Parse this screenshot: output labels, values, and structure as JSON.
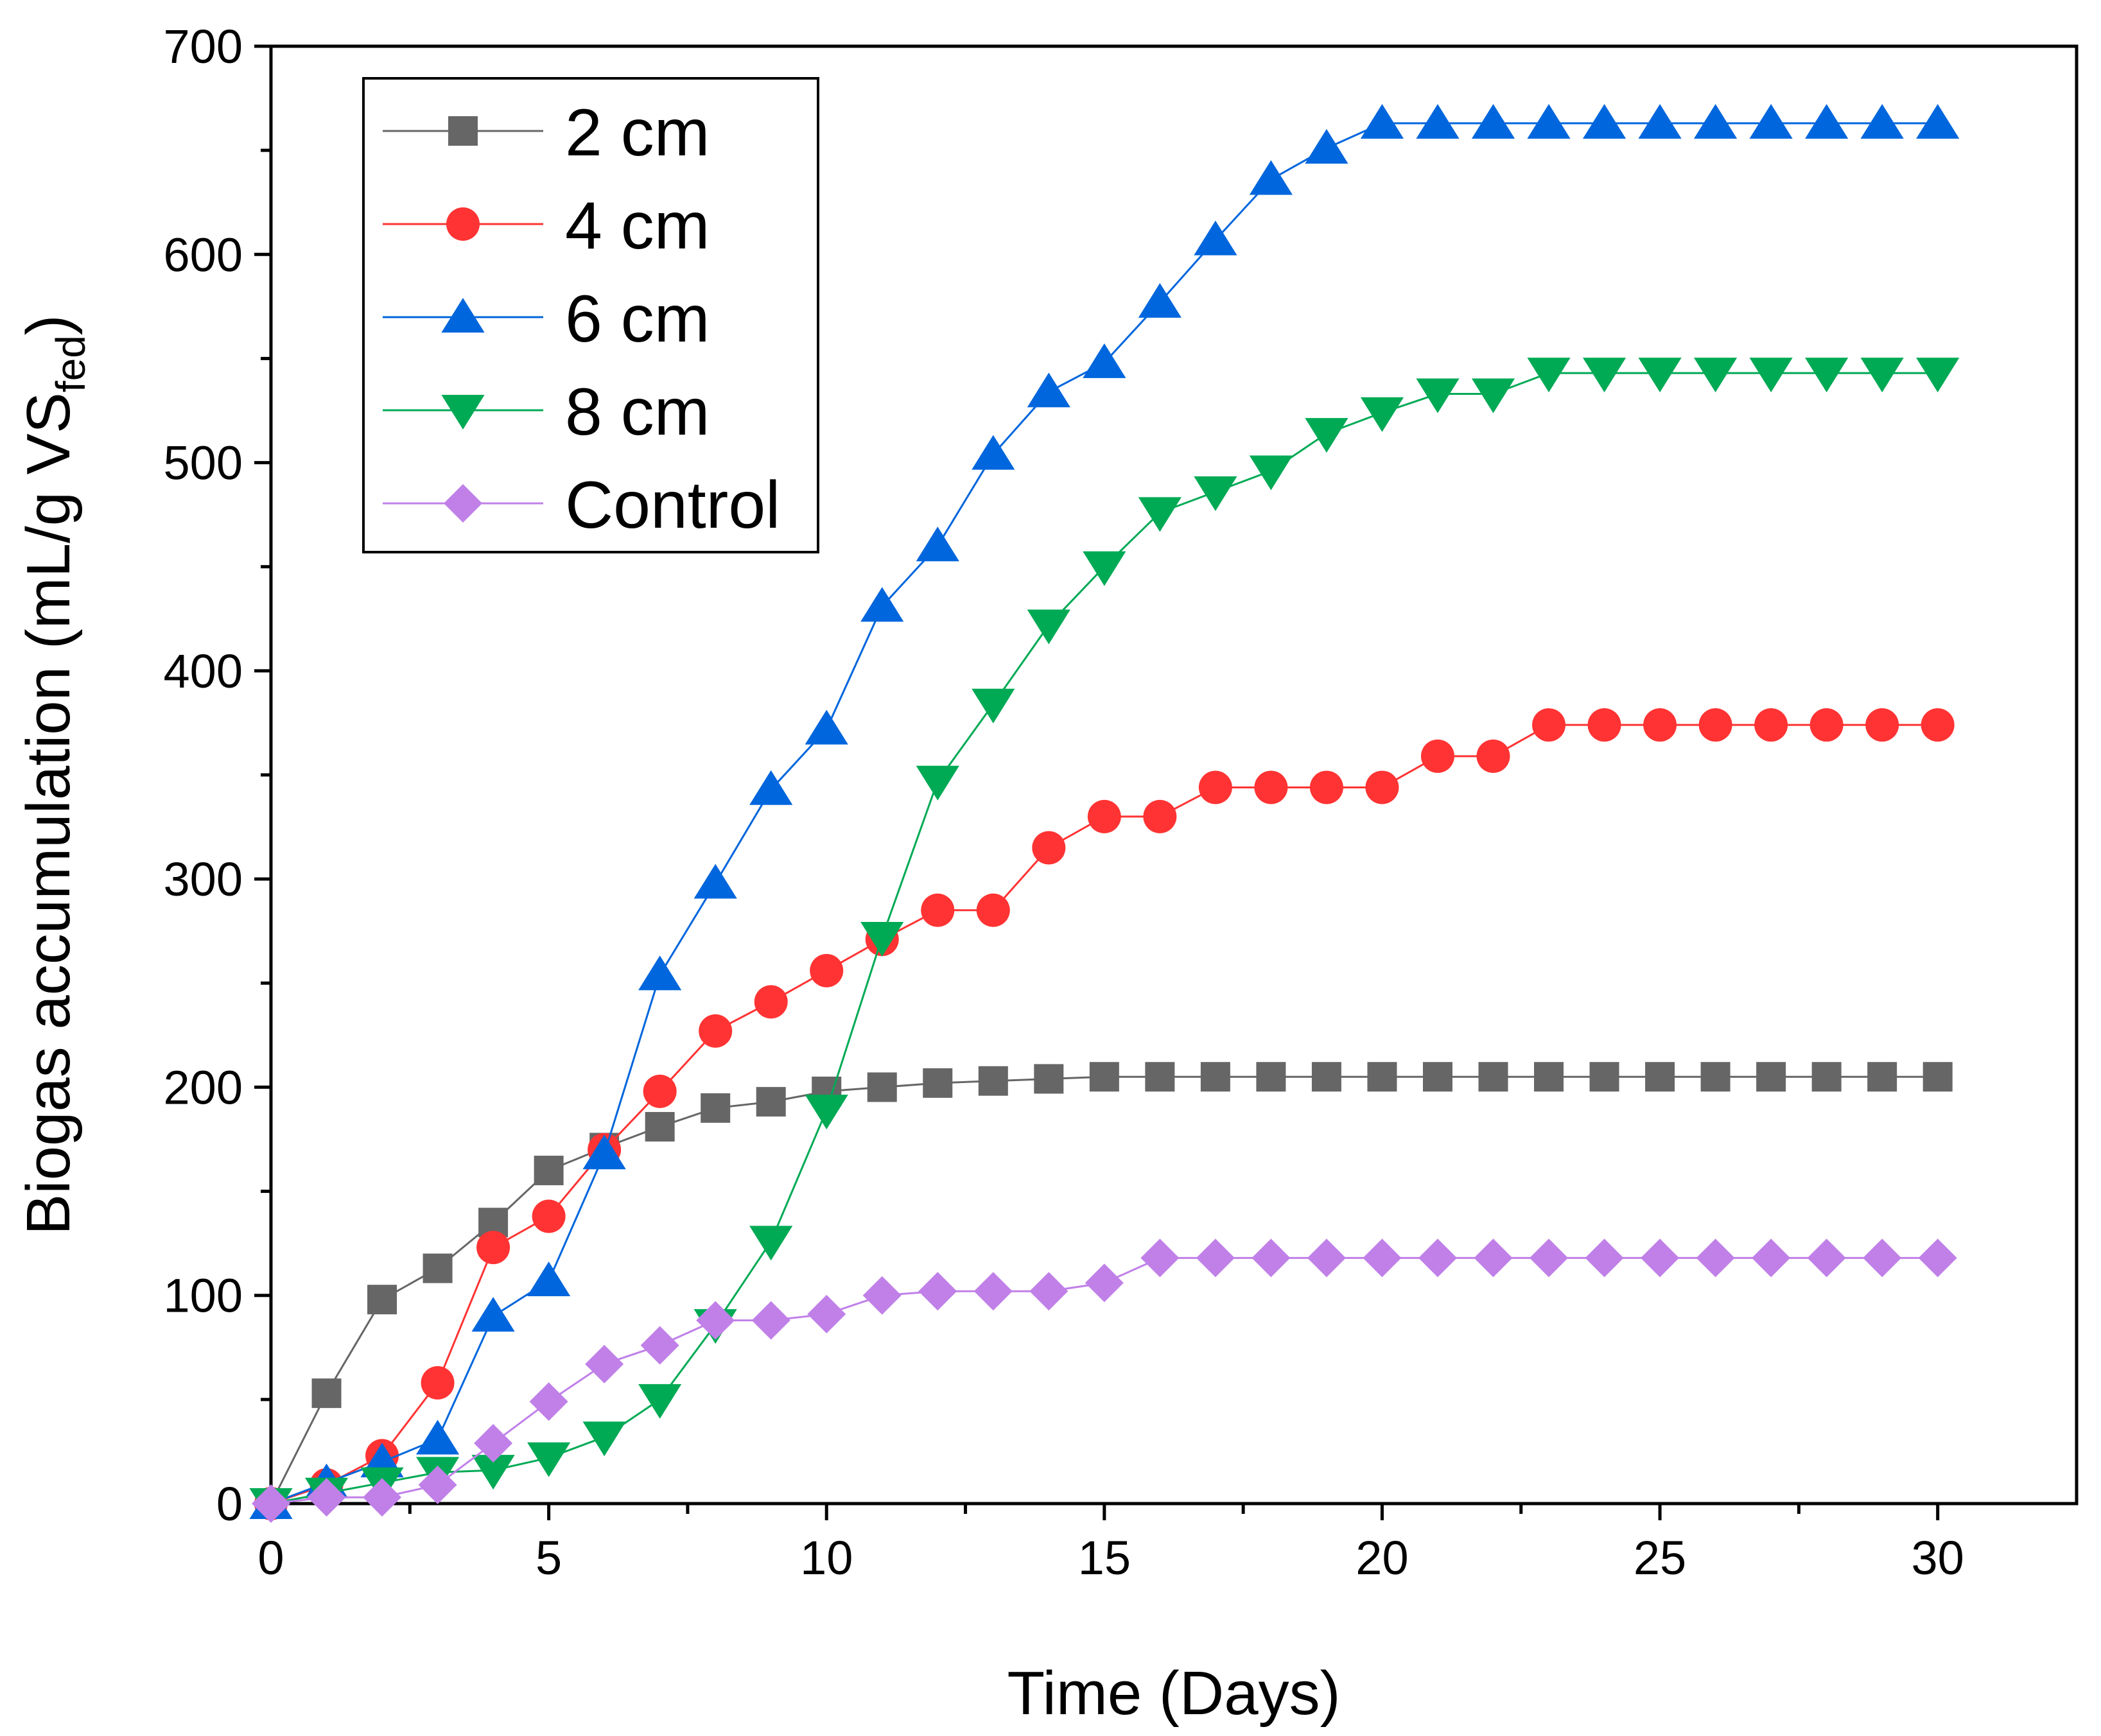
{
  "chart_data": {
    "type": "line",
    "title": "",
    "xlabel": "Time (Days)",
    "ylabel": {
      "main": "Biogas accumulation (mL/g VS",
      "subscript": "fed",
      "close": ")"
    },
    "xlim": [
      0,
      32.5
    ],
    "ylim": [
      0,
      700
    ],
    "xticks": [
      0,
      5,
      10,
      15,
      20,
      25,
      30
    ],
    "yticks": [
      0,
      100,
      200,
      300,
      400,
      500,
      600,
      700
    ],
    "x": [
      0,
      1,
      2,
      3,
      4,
      5,
      6,
      7,
      8,
      9,
      10,
      11,
      12,
      13,
      14,
      15,
      16,
      17,
      18,
      19,
      20,
      21,
      22,
      23,
      24,
      25,
      26,
      27,
      28,
      29,
      30
    ],
    "legend_position": "top-left",
    "series": [
      {
        "name": "2 cm",
        "color": "#666666",
        "marker": "square",
        "values": [
          0,
          53,
          98,
          113,
          135,
          160,
          171,
          181,
          190,
          193,
          198,
          200,
          202,
          203,
          204,
          205,
          205,
          205,
          205,
          205,
          205,
          205,
          205,
          205,
          205,
          205,
          205,
          205,
          205,
          205,
          205
        ]
      },
      {
        "name": "4 cm",
        "color": "#ff3333",
        "marker": "circle",
        "values": [
          0,
          9,
          23,
          58,
          123,
          138,
          170,
          198,
          227,
          241,
          256,
          271,
          285,
          285,
          315,
          330,
          330,
          344,
          344,
          344,
          344,
          359,
          359,
          374,
          374,
          374,
          374,
          374,
          374,
          374,
          374
        ]
      },
      {
        "name": "6 cm",
        "color": "#0066dd",
        "marker": "triangle-up",
        "values": [
          0,
          10,
          20,
          31,
          90,
          107,
          168,
          254,
          298,
          343,
          372,
          431,
          460,
          504,
          534,
          548,
          577,
          607,
          636,
          651,
          663,
          663,
          663,
          663,
          663,
          663,
          663,
          663,
          663,
          663,
          663
        ]
      },
      {
        "name": "8 cm",
        "color": "#00aa55",
        "marker": "triangle-down",
        "values": [
          0,
          5,
          10,
          15,
          16,
          22,
          32,
          50,
          86,
          126,
          189,
          272,
          347,
          384,
          422,
          450,
          476,
          486,
          496,
          514,
          524,
          533,
          533,
          543,
          543,
          543,
          543,
          543,
          543,
          543,
          543
        ]
      },
      {
        "name": "Control",
        "color": "#c080e8",
        "marker": "diamond",
        "values": [
          0,
          3,
          3,
          9,
          29,
          49,
          67,
          76,
          88,
          88,
          91,
          100,
          102,
          102,
          102,
          106,
          118,
          118,
          118,
          118,
          118,
          118,
          118,
          118,
          118,
          118,
          118,
          118,
          118,
          118,
          118
        ]
      }
    ]
  }
}
